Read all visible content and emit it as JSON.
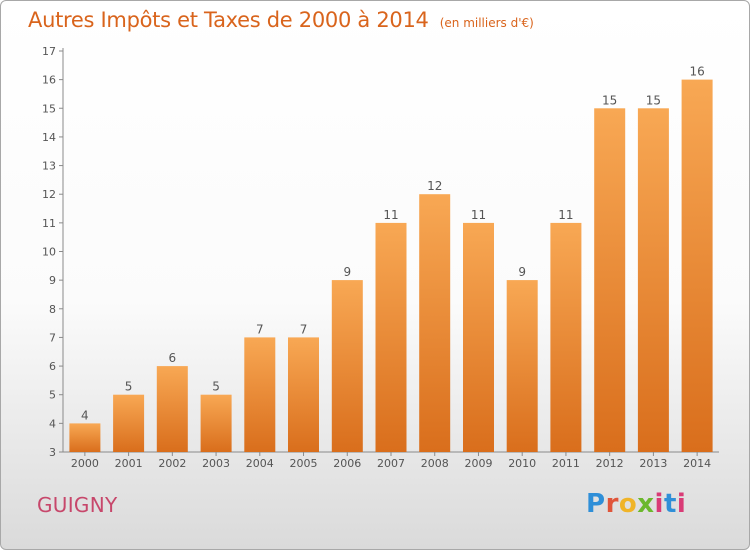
{
  "title": "Autres Impôts et Taxes de 2000 à 2014",
  "subtitle": "(en milliers d'€)",
  "commune": "GUIGNY",
  "brand": {
    "letters": [
      "P",
      "r",
      "o",
      "x",
      "i",
      "t",
      "i"
    ]
  },
  "colors": {
    "title": "#d9641c",
    "commune": "#c7476b",
    "bar_top": "#f8a854",
    "bar_bottom": "#d96e1c",
    "axis": "#8a8a8a",
    "grid": "#d8d8d8"
  },
  "chart_data": {
    "type": "bar",
    "title": "Autres Impôts et Taxes de 2000 à 2014",
    "subtitle": "(en milliers d'€)",
    "categories": [
      "2000",
      "2001",
      "2002",
      "2003",
      "2004",
      "2005",
      "2006",
      "2007",
      "2008",
      "2009",
      "2010",
      "2011",
      "2012",
      "2013",
      "2014"
    ],
    "values": [
      4,
      5,
      6,
      5,
      7,
      7,
      9,
      11,
      12,
      11,
      9,
      11,
      15,
      15,
      16
    ],
    "ylim": [
      3,
      17
    ],
    "yticks": [
      3,
      4,
      5,
      6,
      7,
      8,
      9,
      10,
      11,
      12,
      13,
      14,
      15,
      16,
      17
    ],
    "data_labels": true,
    "grid": false,
    "xlabel": "",
    "ylabel": ""
  }
}
